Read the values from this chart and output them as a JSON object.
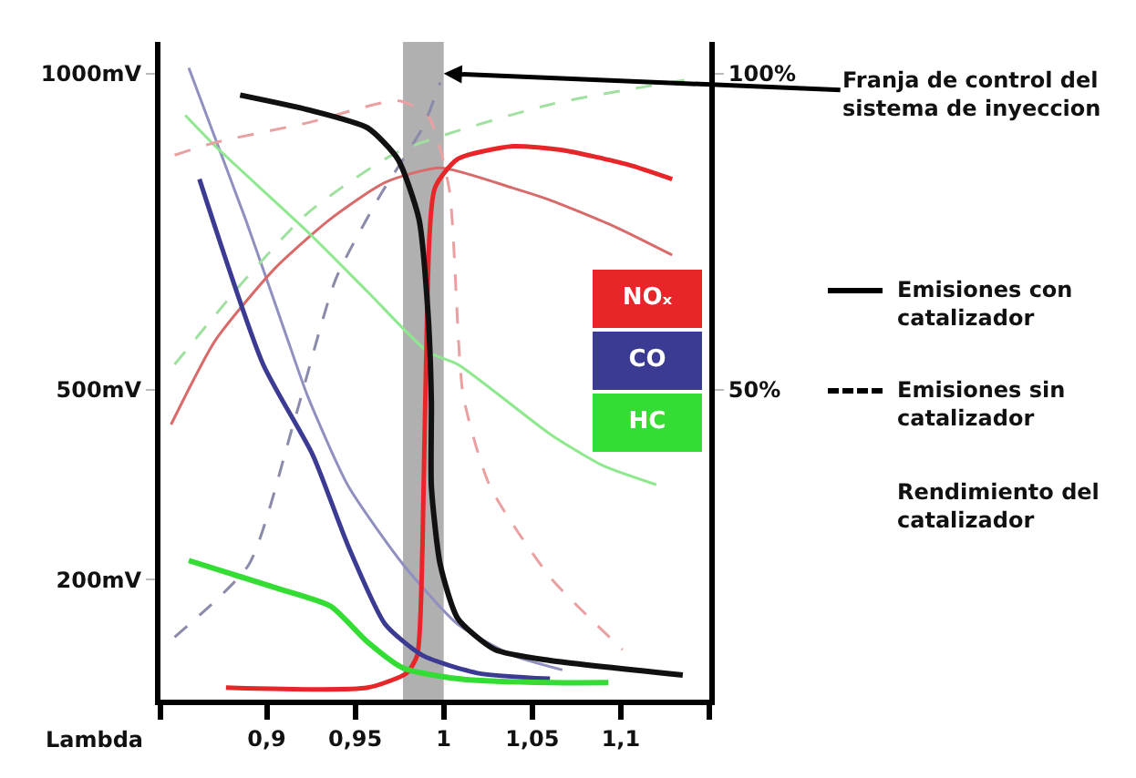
{
  "chart_data": {
    "type": "line",
    "xlabel": "Lambda",
    "xlim": [
      0.84,
      1.15
    ],
    "ylim": [
      10,
      1050
    ],
    "y2lim": [
      1,
      105
    ],
    "xticks": [
      {
        "value": 0.84,
        "label": null
      },
      {
        "value": 0.9,
        "label": "0,9"
      },
      {
        "value": 0.95,
        "label": "0,95"
      },
      {
        "value": 1,
        "label": "1"
      },
      {
        "value": 1.05,
        "label": "1,05"
      },
      {
        "value": 1.1,
        "label": "1,1"
      },
      {
        "value": 1.15,
        "label": null
      }
    ],
    "yticks": [
      {
        "value": 200,
        "label": "200mV"
      },
      {
        "value": 500,
        "label": "500mV"
      },
      {
        "value": 1000,
        "label": "1000mV"
      }
    ],
    "y2ticks": [
      {
        "value": 50,
        "label": "50%"
      },
      {
        "value": 100,
        "label": "100%"
      }
    ],
    "grid": false,
    "marker": "none",
    "legend": "right",
    "bands": [
      {
        "axis": "x",
        "from": 0.977,
        "to": 1.0,
        "color": "#b0b0b0"
      }
    ],
    "annotations": [
      {
        "text": "Franja de control del\nsistema de inyeccion",
        "x": 1.0,
        "y": 1000
      },
      "Emisiones con\ncatalizador",
      "Emisiones sin\ncatalizador",
      "Rendimiento del\ncatalizador"
    ],
    "series": [
      {
        "color": "#9090c0",
        "line_style": "solid",
        "x": [
          0.856,
          0.888,
          0.912,
          0.923,
          0.946,
          0.977,
          1.008,
          1.039,
          1.067
        ],
        "values": [
          1009,
          770,
          578,
          491,
          348,
          224,
          129,
          80,
          57
        ]
      },
      {
        "color": "#d96a6a",
        "line_style": "solid",
        "x": [
          0.846,
          0.871,
          0.905,
          0.936,
          0.967,
          0.998,
          1.039,
          1.06,
          1.095,
          1.129
        ],
        "values": [
          445,
          578,
          693,
          770,
          828,
          851,
          819,
          800,
          760,
          713
        ]
      },
      {
        "color": "#8ee88e",
        "line_style": "solid",
        "x": [
          0.854,
          0.871,
          0.923,
          0.957,
          0.991,
          1.008,
          1.06,
          1.09,
          1.12
        ],
        "values": [
          934,
          885,
          750,
          655,
          560,
          540,
          430,
          380,
          350
        ]
      },
      {
        "color": "#eaa0a0",
        "line_style": "dashed",
        "x": [
          0.848,
          0.871,
          0.923,
          0.974,
          0.991,
          1.003,
          1.011,
          1.026,
          1.06,
          1.101
        ],
        "values": [
          871,
          891,
          922,
          957,
          934,
          819,
          491,
          348,
          204,
          89
        ]
      },
      {
        "color": "#8a8aaa",
        "line_style": "dashed",
        "x": [
          0.848,
          0.89,
          0.915,
          0.939,
          0.964,
          0.988,
          0.998
        ],
        "values": [
          109,
          224,
          445,
          675,
          807,
          914,
          986
        ]
      },
      {
        "color": "#a0e0a0",
        "line_style": "dashed",
        "x": [
          0.848,
          0.888,
          0.923,
          0.974,
          1.06,
          1.139
        ],
        "values": [
          540,
          675,
          779,
          876,
          951,
          991
        ]
      },
      {
        "name": "NOₓ",
        "color": "#e8262a",
        "line_style": "solid",
        "x": [
          0.877,
          0.957,
          0.979,
          0.985,
          0.988,
          0.99,
          0.995,
          1.008,
          1.039,
          1.067,
          1.104,
          1.129
        ],
        "values": [
          29,
          29,
          52,
          80,
          253,
          540,
          819,
          865,
          885,
          879,
          856,
          833
        ]
      },
      {
        "name": "CO",
        "color": "#3b3b94",
        "line_style": "solid",
        "x": [
          0.862,
          0.898,
          0.926,
          0.946,
          0.967,
          0.988,
          1.019,
          1.06
        ],
        "values": [
          833,
          540,
          397,
          253,
          129,
          80,
          52,
          43
        ]
      },
      {
        "name": "HC",
        "color": "#33dd33",
        "line_style": "solid",
        "x": [
          0.856,
          0.905,
          0.936,
          0.957,
          0.977,
          1.008,
          1.06,
          1.093
        ],
        "values": [
          230,
          187,
          158,
          101,
          60,
          43,
          37,
          37
        ]
      },
      {
        "color": "#111111",
        "line_style": "solid",
        "x": [
          0.885,
          0.923,
          0.957,
          0.974,
          0.986,
          0.991,
          0.993,
          0.993,
          0.998,
          1.008,
          1.029,
          1.06,
          1.135
        ],
        "values": [
          966,
          943,
          914,
          865,
          770,
          626,
          483,
          348,
          224,
          138,
          89,
          72,
          49
        ]
      }
    ]
  }
}
